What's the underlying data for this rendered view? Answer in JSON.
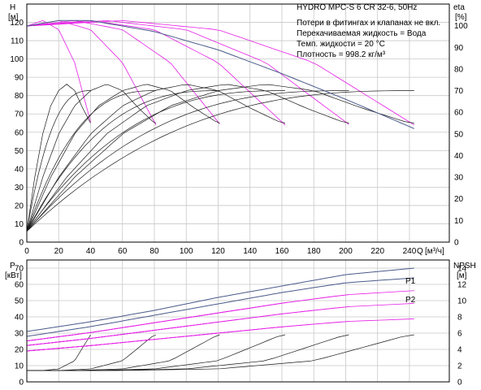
{
  "header": {
    "title": "HYDRO MPC-S 6 CR 32-6, 50Hz",
    "notes": [
      "Потери в фитингах и клапанах не вкл.",
      "Перекачиваемая жидкость = Вода",
      "Темп. жидкости = 20 °C",
      "Плотность = 998.2 кг/м³"
    ]
  },
  "colors": {
    "efficiency": "#1a1a1a",
    "pump": "#e61ee6",
    "envelope": "#4a5a8a",
    "grid": "#c8c8c8"
  },
  "top_chart": {
    "ylabel_left": "H",
    "yunit_left": "[м]",
    "ylabel_right": "eta",
    "yunit_right": "[%]",
    "xlabel": "Q",
    "xunit": "[м³/ч]",
    "y_ticks": [
      "0",
      "10",
      "20",
      "30",
      "40",
      "50",
      "60",
      "70",
      "80",
      "90",
      "100",
      "110",
      "120"
    ],
    "eta_ticks": [
      "0",
      "10",
      "20",
      "30",
      "40",
      "50",
      "60",
      "70",
      "80",
      "90",
      "100"
    ],
    "x_ticks": [
      "0",
      "20",
      "40",
      "60",
      "80",
      "100",
      "120",
      "140",
      "160",
      "180",
      "200",
      "220",
      "240"
    ]
  },
  "bottom_chart": {
    "ylabel_left": "P",
    "yunit_left": "[кВт]",
    "ylabel_right": "NPSH",
    "yunit_right": "[м]",
    "p_ticks": [
      "0",
      "10",
      "20",
      "30",
      "40",
      "50",
      "60",
      "70"
    ],
    "npsh_ticks": [
      "0",
      "2",
      "4",
      "6",
      "8",
      "10",
      "12",
      "14"
    ],
    "labels": [
      "P1",
      "P2"
    ]
  },
  "chart_data": {
    "type": "line",
    "xlim": [
      0,
      265
    ],
    "ylim_head": [
      0,
      130
    ],
    "ylim_eta": [
      0,
      110
    ],
    "ylim_power": [
      0,
      75
    ],
    "ylim_npsh": [
      0,
      15
    ],
    "pump_counts": [
      1,
      2,
      3,
      4,
      5,
      6
    ],
    "max_flow_per_count": [
      40,
      81,
      121,
      162,
      202,
      243
    ],
    "head_curve": {
      "q_per_pump": [
        0,
        10,
        20,
        30,
        40.5
      ],
      "H": [
        118,
        121,
        116,
        98,
        64
      ]
    },
    "head_envelope": {
      "q": [
        0,
        20,
        40,
        80,
        120,
        160,
        200,
        243
      ],
      "H": [
        118,
        121,
        121,
        115,
        105,
        92,
        78,
        62
      ]
    },
    "eta_single": {
      "q": [
        0,
        5,
        10,
        15,
        20,
        25,
        30,
        35,
        40
      ],
      "eta": [
        5,
        30,
        50,
        63,
        70,
        73,
        70,
        62,
        55
      ]
    },
    "eta_max_per_count": [
      76,
      75,
      75,
      75,
      76,
      76
    ],
    "eta_wide_max_per_count": [
      70,
      70,
      70,
      70,
      70,
      70
    ],
    "power_P1": {
      "q": [
        0,
        40,
        80,
        120,
        160,
        200,
        243
      ],
      "P": [
        31,
        37,
        44,
        52,
        59,
        66,
        70
      ]
    },
    "power_P2": {
      "q": [
        0,
        40,
        80,
        120,
        160,
        200,
        243
      ],
      "P": [
        28,
        34,
        41,
        48,
        55,
        61,
        64
      ]
    },
    "power_single": {
      "q_per_pump": [
        0,
        40
      ],
      "P": [
        8,
        12
      ]
    },
    "npsh_per_count": {
      "q_per_pump": [
        0,
        10,
        20,
        30,
        40
      ],
      "NPSH": [
        1.4,
        1.4,
        1.6,
        2.6,
        5.8
      ]
    }
  }
}
